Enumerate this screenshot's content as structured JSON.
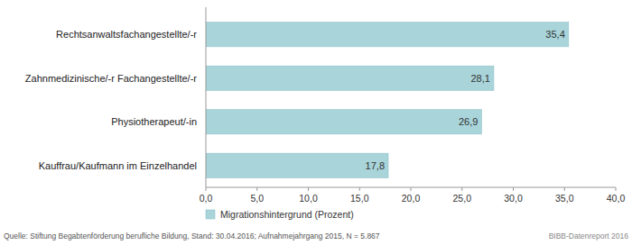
{
  "chart_data": {
    "type": "bar",
    "orientation": "horizontal",
    "categories": [
      "Rechtsanwaltsfachangestellte/-r",
      "Zahnmedizinische/-r Fachangestellte/-r",
      "Physiotherapeut/-in",
      "Kauffrau/Kaufmann im Einzelhandel"
    ],
    "series": [
      {
        "name": "Migrationshintergrund (Prozent)",
        "color": "#a8d4da",
        "values": [
          35.4,
          28.1,
          26.9,
          17.8
        ],
        "value_labels": [
          "35,4",
          "28,1",
          "26,9",
          "17,8"
        ]
      }
    ],
    "xlim": [
      0,
      40
    ],
    "xticks": [
      {
        "value": 0,
        "label": "0,0"
      },
      {
        "value": 5,
        "label": "5,0"
      },
      {
        "value": 10,
        "label": "10,0"
      },
      {
        "value": 15,
        "label": "15,0"
      },
      {
        "value": 20,
        "label": "20,0"
      },
      {
        "value": 25,
        "label": "25,0"
      },
      {
        "value": 30,
        "label": "30,0"
      },
      {
        "value": 35,
        "label": "35,0"
      },
      {
        "value": 40,
        "label": "40,0"
      }
    ],
    "grid": false,
    "data_labels": true,
    "legend": "bottom",
    "annotations": [
      "Quelle: Stiftung Begabtenförderung berufliche Bildung, Stand: 30.04.2016; Aufnahmejahrgang 2015, N = 5.867",
      "BIBB-Datenreport 2016"
    ]
  }
}
